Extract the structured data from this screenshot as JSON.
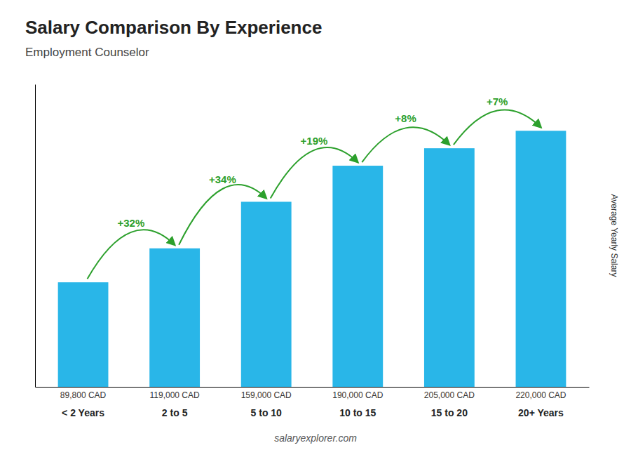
{
  "chart_data": {
    "type": "bar",
    "title": "Salary Comparison By Experience",
    "subtitle": "Employment Counselor",
    "ylabel": "Average Yearly Salary",
    "watermark": "salaryexplorer.com",
    "categories": [
      "< 2 Years",
      "2 to 5",
      "5 to 10",
      "10 to 15",
      "15 to 20",
      "20+ Years"
    ],
    "values": [
      89800,
      119000,
      159000,
      190000,
      205000,
      220000
    ],
    "value_labels": [
      "89,800 CAD",
      "119,000 CAD",
      "159,000 CAD",
      "190,000 CAD",
      "205,000 CAD",
      "220,000 CAD"
    ],
    "data_labels": true,
    "annotations": [
      "+32%",
      "+34%",
      "+19%",
      "+8%",
      "+7%"
    ],
    "color": "#29b6e8",
    "ylim": [
      0,
      260000
    ],
    "tick_labels": "x",
    "grid": false
  }
}
